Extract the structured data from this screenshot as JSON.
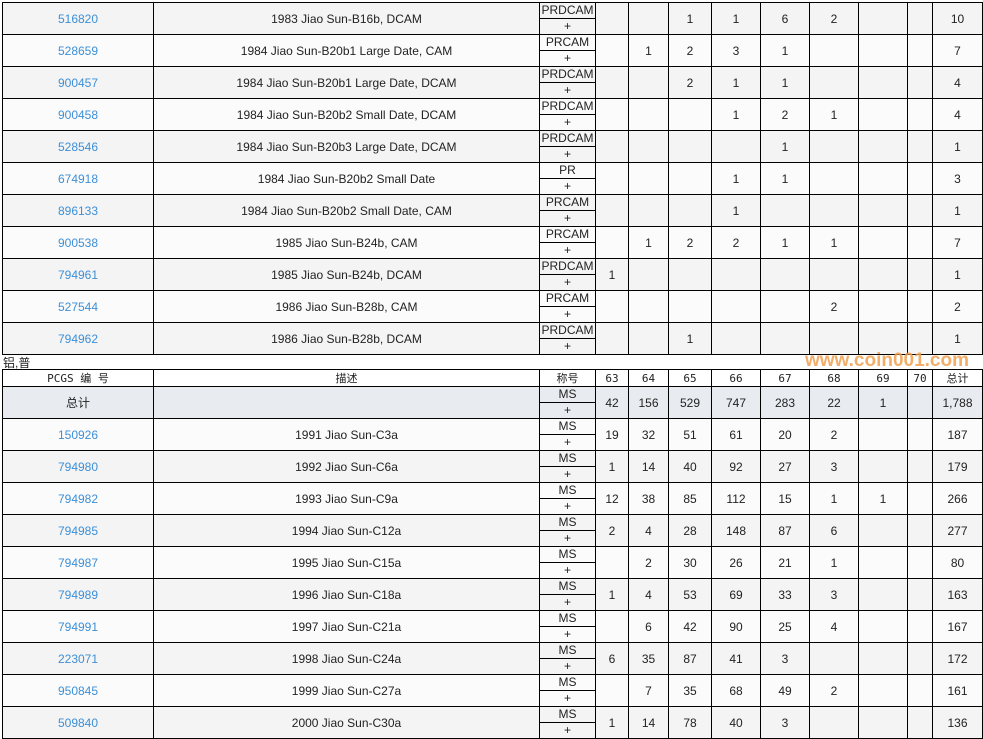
{
  "top_rows": [
    {
      "pcgs": "516820",
      "desc": "1983 Jiao Sun-B16b, DCAM",
      "des": "PRDCAM",
      "plus": "+",
      "grades": [
        "",
        "",
        "1",
        "1",
        "6",
        "2",
        "",
        ""
      ],
      "total": "10"
    },
    {
      "pcgs": "528659",
      "desc": "1984 Jiao Sun-B20b1 Large Date, CAM",
      "des": "PRCAM",
      "plus": "+",
      "grades": [
        "",
        "1",
        "2",
        "3",
        "1",
        "",
        "",
        ""
      ],
      "total": "7"
    },
    {
      "pcgs": "900457",
      "desc": "1984 Jiao Sun-B20b1 Large Date, DCAM",
      "des": "PRDCAM",
      "plus": "+",
      "grades": [
        "",
        "",
        "2",
        "1",
        "1",
        "",
        "",
        ""
      ],
      "total": "4"
    },
    {
      "pcgs": "900458",
      "desc": "1984 Jiao Sun-B20b2 Small Date, DCAM",
      "des": "PRDCAM",
      "plus": "+",
      "grades": [
        "",
        "",
        "",
        "1",
        "2",
        "1",
        "",
        ""
      ],
      "total": "4"
    },
    {
      "pcgs": "528546",
      "desc": "1984 Jiao Sun-B20b3 Large Date, DCAM",
      "des": "PRDCAM",
      "plus": "+",
      "grades": [
        "",
        "",
        "",
        "",
        "1",
        "",
        "",
        ""
      ],
      "total": "1"
    },
    {
      "pcgs": "674918",
      "desc": "1984 Jiao Sun-B20b2 Small Date",
      "des": "PR",
      "plus": "+",
      "grades": [
        "",
        "",
        "",
        "1",
        "1",
        "",
        "",
        ""
      ],
      "total": "3"
    },
    {
      "pcgs": "896133",
      "desc": "1984 Jiao Sun-B20b2 Small Date, CAM",
      "des": "PRCAM",
      "plus": "+",
      "grades": [
        "",
        "",
        "",
        "1",
        "",
        "",
        "",
        ""
      ],
      "total": "1"
    },
    {
      "pcgs": "900538",
      "desc": "1985 Jiao Sun-B24b, CAM",
      "des": "PRCAM",
      "plus": "+",
      "grades": [
        "",
        "1",
        "2",
        "2",
        "1",
        "1",
        "",
        ""
      ],
      "total": "7"
    },
    {
      "pcgs": "794961",
      "desc": "1985 Jiao Sun-B24b, DCAM",
      "des": "PRDCAM",
      "plus": "+",
      "grades": [
        "1",
        "",
        "",
        "",
        "",
        "",
        "",
        ""
      ],
      "total": "1"
    },
    {
      "pcgs": "527544",
      "desc": "1986 Jiao Sun-B28b, CAM",
      "des": "PRCAM",
      "plus": "+",
      "grades": [
        "",
        "",
        "",
        "",
        "",
        "2",
        "",
        ""
      ],
      "total": "2"
    },
    {
      "pcgs": "794962",
      "desc": "1986 Jiao Sun-B28b, DCAM",
      "des": "PRDCAM",
      "plus": "+",
      "grades": [
        "",
        "",
        "1",
        "",
        "",
        "",
        "",
        ""
      ],
      "total": "1"
    }
  ],
  "section_title": "铝,普",
  "headers": {
    "pcgs": "PCGS 编 号",
    "desc": "描述",
    "des": "称号",
    "grades": [
      "63",
      "64",
      "65",
      "66",
      "67",
      "68",
      "69",
      "70"
    ],
    "total": "总计"
  },
  "total_row": {
    "label": "总计",
    "des": "MS",
    "plus": "+",
    "grades": [
      "42",
      "156",
      "529",
      "747",
      "283",
      "22",
      "1",
      ""
    ],
    "total": "1,788"
  },
  "bottom_rows": [
    {
      "pcgs": "150926",
      "desc": "1991 Jiao Sun-C3a",
      "des": "MS",
      "plus": "+",
      "grades": [
        "19",
        "32",
        "51",
        "61",
        "20",
        "2",
        "",
        ""
      ],
      "total": "187"
    },
    {
      "pcgs": "794980",
      "desc": "1992 Jiao Sun-C6a",
      "des": "MS",
      "plus": "+",
      "grades": [
        "1",
        "14",
        "40",
        "92",
        "27",
        "3",
        "",
        ""
      ],
      "total": "179"
    },
    {
      "pcgs": "794982",
      "desc": "1993 Jiao Sun-C9a",
      "des": "MS",
      "plus": "+",
      "grades": [
        "12",
        "38",
        "85",
        "112",
        "15",
        "1",
        "1",
        ""
      ],
      "total": "266"
    },
    {
      "pcgs": "794985",
      "desc": "1994 Jiao Sun-C12a",
      "des": "MS",
      "plus": "+",
      "grades": [
        "2",
        "4",
        "28",
        "148",
        "87",
        "6",
        "",
        ""
      ],
      "total": "277"
    },
    {
      "pcgs": "794987",
      "desc": "1995 Jiao Sun-C15a",
      "des": "MS",
      "plus": "+",
      "grades": [
        "",
        "2",
        "30",
        "26",
        "21",
        "1",
        "",
        ""
      ],
      "total": "80"
    },
    {
      "pcgs": "794989",
      "desc": "1996 Jiao Sun-C18a",
      "des": "MS",
      "plus": "+",
      "grades": [
        "1",
        "4",
        "53",
        "69",
        "33",
        "3",
        "",
        ""
      ],
      "total": "163"
    },
    {
      "pcgs": "794991",
      "desc": "1997 Jiao Sun-C21a",
      "des": "MS",
      "plus": "+",
      "grades": [
        "",
        "6",
        "42",
        "90",
        "25",
        "4",
        "",
        ""
      ],
      "total": "167"
    },
    {
      "pcgs": "223071",
      "desc": "1998 Jiao Sun-C24a",
      "des": "MS",
      "plus": "+",
      "grades": [
        "6",
        "35",
        "87",
        "41",
        "3",
        "",
        "",
        ""
      ],
      "total": "172"
    },
    {
      "pcgs": "950845",
      "desc": "1999 Jiao Sun-C27a",
      "des": "MS",
      "plus": "+",
      "grades": [
        "",
        "7",
        "35",
        "68",
        "49",
        "2",
        "",
        ""
      ],
      "total": "161"
    },
    {
      "pcgs": "509840",
      "desc": "2000 Jiao Sun-C30a",
      "des": "MS",
      "plus": "+",
      "grades": [
        "1",
        "14",
        "78",
        "40",
        "3",
        "",
        "",
        ""
      ],
      "total": "136"
    }
  ],
  "watermark": "www.coin001.com"
}
